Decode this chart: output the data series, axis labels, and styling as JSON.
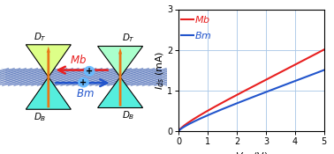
{
  "vds_fine_n": 300,
  "vds_max": 5.0,
  "Mb_a": 0.54,
  "Mb_b": 0.045,
  "Bm_a": 0.415,
  "Bm_b": 0.032,
  "color_Mb": "#e82020",
  "color_Bm": "#2255cc",
  "xlabel": "$V_{ds}$ (V)",
  "ylabel": "$I_{ds}$ (mA)",
  "xlim": [
    0,
    5
  ],
  "ylim": [
    0,
    3
  ],
  "xticks": [
    0,
    1,
    2,
    3,
    4,
    5
  ],
  "yticks": [
    0,
    1,
    2,
    3
  ],
  "grid_color": "#aac8e8",
  "bg_color": "#ffffff",
  "fig_width": 3.78,
  "fig_height": 1.75,
  "orange": "#e87818",
  "cone_top_color_left": "#ccff88",
  "cone_bot_color_left": "#44ddcc",
  "cone_top_color_right": "#88ffaa",
  "cone_bot_color_right": "#44ddcc",
  "stripe_color1": "#3355aa",
  "stripe_color2": "#6688bb",
  "plus_circle_color": "#66bbff",
  "label_Mb": "Mb",
  "label_Bm": "Bm"
}
